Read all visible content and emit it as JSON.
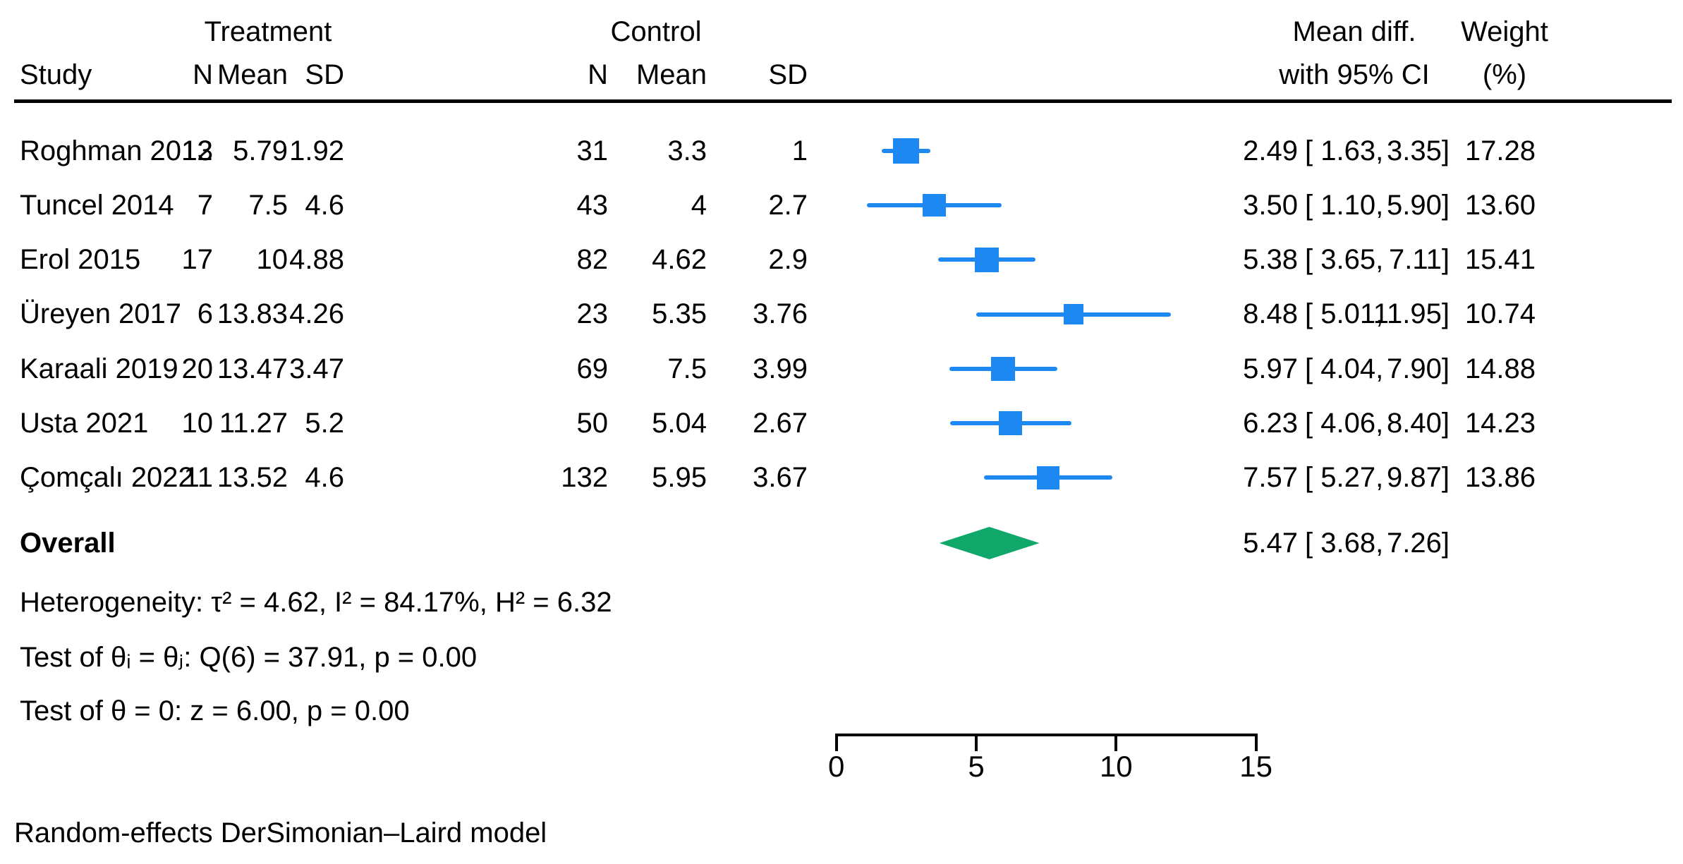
{
  "header": {
    "study": "Study",
    "treatment_group": "Treatment",
    "control_group": "Control",
    "col_n": "N",
    "col_mean": "Mean",
    "col_sd": "SD",
    "effect_line1": "Mean diff.",
    "effect_line2": "with 95% CI",
    "weight_line1": "Weight",
    "weight_line2": "(%)"
  },
  "rows": [
    {
      "study": "Roghman 2012",
      "t_n": "13",
      "t_mean": "5.79",
      "t_sd": "1.92",
      "c_n": "31",
      "c_mean": "3.3",
      "c_sd": "1",
      "md": "2.49",
      "lo": "[ 1.63,",
      "hi": "3.35]",
      "weight": "17.28"
    },
    {
      "study": "Tuncel 2014",
      "t_n": "7",
      "t_mean": "7.5",
      "t_sd": "4.6",
      "c_n": "43",
      "c_mean": "4",
      "c_sd": "2.7",
      "md": "3.50",
      "lo": "[ 1.10,",
      "hi": "5.90]",
      "weight": "13.60"
    },
    {
      "study": "Erol 2015",
      "t_n": "17",
      "t_mean": "10",
      "t_sd": "4.88",
      "c_n": "82",
      "c_mean": "4.62",
      "c_sd": "2.9",
      "md": "5.38",
      "lo": "[ 3.65,",
      "hi": "7.11]",
      "weight": "15.41"
    },
    {
      "study": "Üreyen 2017",
      "t_n": "6",
      "t_mean": "13.83",
      "t_sd": "4.26",
      "c_n": "23",
      "c_mean": "5.35",
      "c_sd": "3.76",
      "md": "8.48",
      "lo": "[ 5.01,",
      "hi": "11.95]",
      "weight": "10.74"
    },
    {
      "study": "Karaali 2019",
      "t_n": "20",
      "t_mean": "13.47",
      "t_sd": "3.47",
      "c_n": "69",
      "c_mean": "7.5",
      "c_sd": "3.99",
      "md": "5.97",
      "lo": "[ 4.04,",
      "hi": "7.90]",
      "weight": "14.88"
    },
    {
      "study": "Usta 2021",
      "t_n": "10",
      "t_mean": "11.27",
      "t_sd": "5.2",
      "c_n": "50",
      "c_mean": "5.04",
      "c_sd": "2.67",
      "md": "6.23",
      "lo": "[ 4.06,",
      "hi": "8.40]",
      "weight": "14.23"
    },
    {
      "study": "Çomçalı 2022",
      "t_n": "11",
      "t_mean": "13.52",
      "t_sd": "4.6",
      "c_n": "132",
      "c_mean": "5.95",
      "c_sd": "3.67",
      "md": "7.57",
      "lo": "[ 5.27,",
      "hi": "9.87]",
      "weight": "13.86"
    }
  ],
  "overall": {
    "label": "Overall",
    "md": "5.47",
    "lo": "[ 3.68,",
    "hi": "7.26]"
  },
  "stats": {
    "heterogeneity": "Heterogeneity: τ² = 4.62, I² = 84.17%, H² = 6.32",
    "test_between": "Test of θᵢ = θⱼ: Q(6) = 37.91, p = 0.00",
    "test_overall": "Test of θ = 0: z = 6.00, p = 0.00"
  },
  "footer": "Random-effects DerSimonian–Laird model",
  "chart_data": {
    "type": "forest",
    "effect_measure": "Mean diff.",
    "x_ticks": [
      0,
      5,
      10,
      15
    ],
    "xlim": [
      0,
      15
    ],
    "marker_color": "#1e88f2",
    "diamond_color": "#10a76b",
    "studies": [
      {
        "name": "Roghman 2012",
        "treatment": {
          "n": 13,
          "mean": 5.79,
          "sd": 1.92
        },
        "control": {
          "n": 31,
          "mean": 3.3,
          "sd": 1
        },
        "effect": 2.49,
        "ci": [
          1.63,
          3.35
        ],
        "weight": 17.28
      },
      {
        "name": "Tuncel 2014",
        "treatment": {
          "n": 7,
          "mean": 7.5,
          "sd": 4.6
        },
        "control": {
          "n": 43,
          "mean": 4,
          "sd": 2.7
        },
        "effect": 3.5,
        "ci": [
          1.1,
          5.9
        ],
        "weight": 13.6
      },
      {
        "name": "Erol 2015",
        "treatment": {
          "n": 17,
          "mean": 10,
          "sd": 4.88
        },
        "control": {
          "n": 82,
          "mean": 4.62,
          "sd": 2.9
        },
        "effect": 5.38,
        "ci": [
          3.65,
          7.11
        ],
        "weight": 15.41
      },
      {
        "name": "Üreyen 2017",
        "treatment": {
          "n": 6,
          "mean": 13.83,
          "sd": 4.26
        },
        "control": {
          "n": 23,
          "mean": 5.35,
          "sd": 3.76
        },
        "effect": 8.48,
        "ci": [
          5.01,
          11.95
        ],
        "weight": 10.74
      },
      {
        "name": "Karaali 2019",
        "treatment": {
          "n": 20,
          "mean": 13.47,
          "sd": 3.47
        },
        "control": {
          "n": 69,
          "mean": 7.5,
          "sd": 3.99
        },
        "effect": 5.97,
        "ci": [
          4.04,
          7.9
        ],
        "weight": 14.88
      },
      {
        "name": "Usta 2021",
        "treatment": {
          "n": 10,
          "mean": 11.27,
          "sd": 5.2
        },
        "control": {
          "n": 50,
          "mean": 5.04,
          "sd": 2.67
        },
        "effect": 6.23,
        "ci": [
          4.06,
          8.4
        ],
        "weight": 14.23
      },
      {
        "name": "Çomçalı 2022",
        "treatment": {
          "n": 11,
          "mean": 13.52,
          "sd": 4.6
        },
        "control": {
          "n": 132,
          "mean": 5.95,
          "sd": 3.67
        },
        "effect": 7.57,
        "ci": [
          5.27,
          9.87
        ],
        "weight": 13.86
      }
    ],
    "overall": {
      "effect": 5.47,
      "ci": [
        3.68,
        7.26
      ]
    },
    "model": "Random-effects DerSimonian–Laird"
  }
}
